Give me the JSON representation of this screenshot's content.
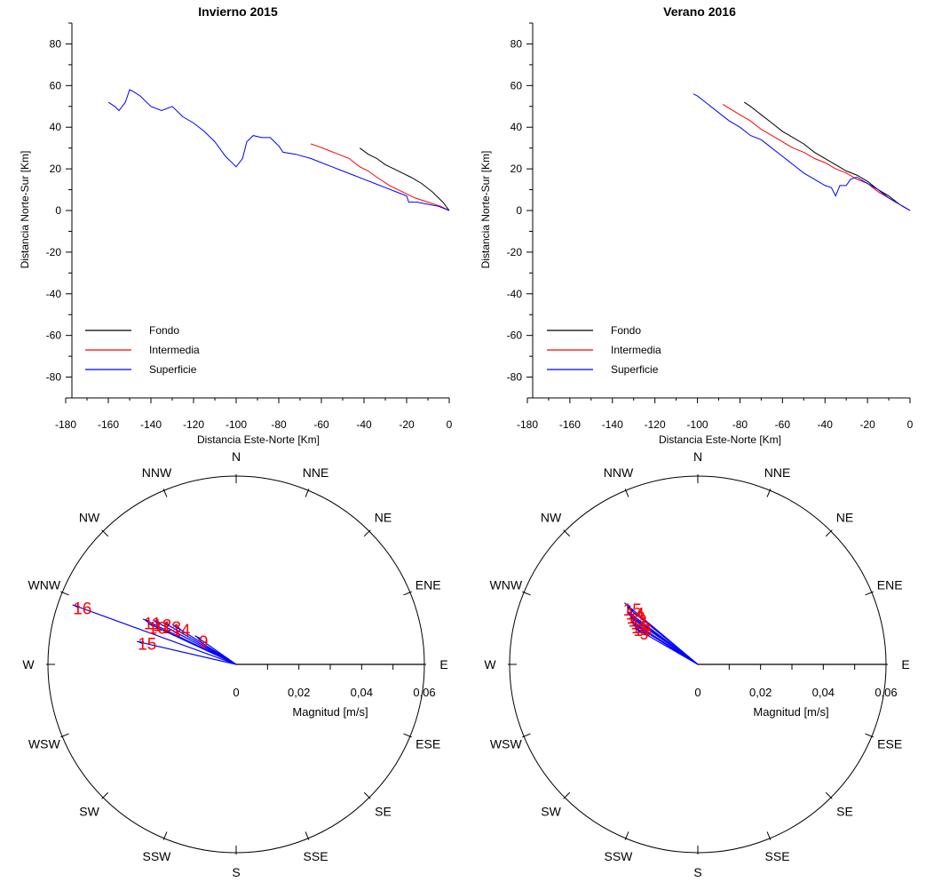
{
  "chart_data": [
    {
      "id": "invierno-pvd",
      "type": "line",
      "title": "Invierno 2015",
      "xlabel": "Distancia Este-Norte [Km]",
      "ylabel": "Distancia Norte-Sur [Km]",
      "xlim": [
        -180,
        0
      ],
      "ylim": [
        -90,
        90
      ],
      "xticks": [
        "-180",
        "-160",
        "-140",
        "-120",
        "-100",
        "-80",
        "-60",
        "-40",
        "-20",
        "0"
      ],
      "yticks": [
        "80",
        "60",
        "40",
        "20",
        "0",
        "-20",
        "-40",
        "-60",
        "-80"
      ],
      "legend": "bottom-left",
      "series": [
        {
          "name": "Fondo",
          "color": "#000000",
          "x": [
            0,
            -3,
            -8,
            -13,
            -18,
            -22,
            -26,
            -30,
            -34,
            -38,
            -42
          ],
          "y": [
            0,
            4,
            9,
            13,
            16,
            18,
            20,
            22,
            25,
            27,
            30
          ]
        },
        {
          "name": "Intermedia",
          "color": "#ff0000",
          "x": [
            0,
            -4,
            -10,
            -16,
            -22,
            -28,
            -34,
            -38,
            -42,
            -47,
            -52,
            -57,
            -62,
            -65
          ],
          "y": [
            0,
            2,
            4,
            6,
            9,
            12,
            16,
            19,
            21,
            25,
            27,
            29,
            31,
            32
          ]
        },
        {
          "name": "Superficie",
          "color": "#0000ff",
          "x": [
            0,
            -5,
            -10,
            -15,
            -19,
            -20,
            -25,
            -30,
            -35,
            -40,
            -45,
            -50,
            -55,
            -60,
            -65,
            -72,
            -78,
            -80,
            -82,
            -84,
            -88,
            -92,
            -95,
            -97,
            -100,
            -105,
            -110,
            -115,
            -120,
            -125,
            -130,
            -135,
            -140,
            -145,
            -148,
            -150,
            -152,
            -155,
            -157,
            -160
          ],
          "y": [
            0,
            2,
            3,
            4,
            4,
            7,
            9,
            11,
            13,
            15,
            17,
            19,
            21,
            23,
            25,
            27,
            28,
            31,
            33,
            35,
            35,
            36,
            33,
            25,
            21,
            26,
            33,
            38,
            42,
            45,
            50,
            48,
            50,
            55,
            57,
            58,
            52,
            48,
            50,
            52
          ]
        }
      ]
    },
    {
      "id": "verano-pvd",
      "type": "line",
      "title": "Verano 2016",
      "xlabel": "Distancia Este-Norte [Km]",
      "ylabel": "Distancia Norte-Sur [Km]",
      "xlim": [
        -180,
        0
      ],
      "ylim": [
        -90,
        90
      ],
      "xticks": [
        "-180",
        "-160",
        "-140",
        "-120",
        "-100",
        "-80",
        "-60",
        "-40",
        "-20",
        "0"
      ],
      "yticks": [
        "80",
        "60",
        "40",
        "20",
        "0",
        "-20",
        "-40",
        "-60",
        "-80"
      ],
      "legend": "bottom-left",
      "series": [
        {
          "name": "Fondo",
          "color": "#000000",
          "x": [
            0,
            -5,
            -10,
            -15,
            -20,
            -25,
            -30,
            -35,
            -40,
            -45,
            -50,
            -55,
            -60,
            -65,
            -70,
            -75,
            -78
          ],
          "y": [
            0,
            3,
            7,
            10,
            14,
            17,
            19,
            22,
            25,
            28,
            32,
            35,
            38,
            42,
            46,
            50,
            52
          ]
        },
        {
          "name": "Intermedia",
          "color": "#ff0000",
          "x": [
            0,
            -5,
            -10,
            -15,
            -20,
            -25,
            -30,
            -35,
            -40,
            -45,
            -50,
            -55,
            -60,
            -65,
            -70,
            -75,
            -80,
            -85,
            -88
          ],
          "y": [
            0,
            3,
            6,
            9,
            13,
            15,
            18,
            20,
            23,
            25,
            28,
            30,
            33,
            36,
            39,
            43,
            46,
            49,
            51
          ]
        },
        {
          "name": "Superficie",
          "color": "#0000ff",
          "x": [
            0,
            -5,
            -10,
            -15,
            -20,
            -25,
            -28,
            -30,
            -33,
            -35,
            -37,
            -40,
            -45,
            -50,
            -55,
            -60,
            -65,
            -70,
            -75,
            -80,
            -85,
            -90,
            -95,
            -100,
            -102
          ],
          "y": [
            0,
            3,
            6,
            10,
            13,
            16,
            15,
            12,
            12,
            7,
            11,
            12,
            15,
            18,
            22,
            26,
            30,
            34,
            36,
            40,
            43,
            47,
            51,
            55,
            56
          ]
        }
      ]
    },
    {
      "id": "invierno-rose",
      "type": "compass",
      "rlabel": "Magnitud [m/s]",
      "rmax": 0.06,
      "rticks": [
        "0",
        "0,02",
        "0,04",
        "0,06"
      ],
      "directions": [
        "N",
        "NNE",
        "NE",
        "ENE",
        "E",
        "ESE",
        "SE",
        "SSE",
        "S",
        "SSW",
        "SW",
        "WSW",
        "W",
        "WNW",
        "NW",
        "NNW"
      ],
      "vectors": [
        {
          "label": "16",
          "dir_deg": 290,
          "mag": 0.0555
        },
        {
          "label": "15",
          "dir_deg": 283,
          "mag": 0.0325
        },
        {
          "label": "11",
          "dir_deg": 296,
          "mag": 0.033
        },
        {
          "label": "12",
          "dir_deg": 298,
          "mag": 0.03
        },
        {
          "label": "13",
          "dir_deg": 300,
          "mag": 0.027
        },
        {
          "label": "14",
          "dir_deg": 302,
          "mag": 0.024
        },
        {
          "label": "10",
          "dir_deg": 295,
          "mag": 0.031
        },
        {
          "label": "9",
          "dir_deg": 305,
          "mag": 0.016
        }
      ]
    },
    {
      "id": "verano-rose",
      "type": "compass",
      "rlabel": "Magnitud [m/s]",
      "rmax": 0.06,
      "rticks": [
        "0",
        "0,02",
        "0,04",
        "0,06"
      ],
      "directions": [
        "N",
        "NNE",
        "NE",
        "ENE",
        "E",
        "ESE",
        "SE",
        "SSE",
        "S",
        "SSW",
        "SW",
        "WSW",
        "W",
        "WNW",
        "NW",
        "NNW"
      ],
      "vectors": [
        {
          "label": "15",
          "dir_deg": 310,
          "mag": 0.0305
        },
        {
          "label": "14",
          "dir_deg": 309,
          "mag": 0.029
        },
        {
          "label": "13",
          "dir_deg": 307,
          "mag": 0.028
        },
        {
          "label": "12",
          "dir_deg": 306,
          "mag": 0.027
        },
        {
          "label": "11",
          "dir_deg": 305,
          "mag": 0.026
        },
        {
          "label": "10",
          "dir_deg": 303,
          "mag": 0.025
        },
        {
          "label": "16",
          "dir_deg": 302,
          "mag": 0.024
        },
        {
          "label": "9",
          "dir_deg": 300,
          "mag": 0.023
        }
      ]
    }
  ]
}
